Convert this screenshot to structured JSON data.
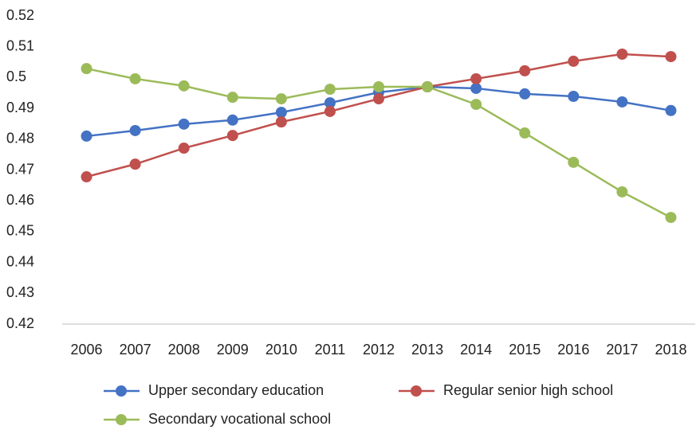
{
  "chart_data": {
    "type": "line",
    "categories": [
      "2006",
      "2007",
      "2008",
      "2009",
      "2010",
      "2011",
      "2012",
      "2013",
      "2014",
      "2015",
      "2016",
      "2017",
      "2018"
    ],
    "series": [
      {
        "name": "Upper secondary education",
        "color": "#4472c4",
        "values": [
          0.481,
          0.4828,
          0.4849,
          0.4862,
          0.4887,
          0.4918,
          0.4952,
          0.497,
          0.4965,
          0.4947,
          0.4939,
          0.4921,
          0.4893
        ]
      },
      {
        "name": "Regular senior high school",
        "color": "#c0504d",
        "values": [
          0.4678,
          0.4719,
          0.4771,
          0.4812,
          0.4856,
          0.489,
          0.4931,
          0.497,
          0.4996,
          0.5022,
          0.5053,
          0.5076,
          0.5068
        ]
      },
      {
        "name": "Secondary vocational school",
        "color": "#9bbb59",
        "values": [
          0.5029,
          0.4996,
          0.4973,
          0.4936,
          0.4931,
          0.4962,
          0.497,
          0.497,
          0.4913,
          0.482,
          0.4725,
          0.4629,
          0.4546
        ]
      }
    ],
    "ylim": [
      0.42,
      0.52
    ],
    "yticks": [
      0.42,
      0.43,
      0.44,
      0.45,
      0.46,
      0.47,
      0.48,
      0.49,
      0.5,
      0.51,
      0.52
    ],
    "grid": false,
    "legend": "bottom"
  }
}
